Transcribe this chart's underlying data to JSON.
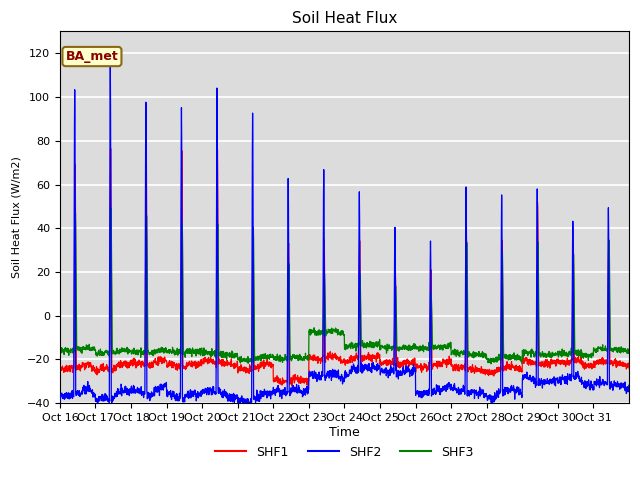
{
  "title": "Soil Heat Flux",
  "ylabel": "Soil Heat Flux (W/m2)",
  "xlabel": "Time",
  "ylim": [
    -40,
    130
  ],
  "yticks": [
    -40,
    -20,
    0,
    20,
    40,
    60,
    80,
    100,
    120
  ],
  "colors": {
    "SHF1": "red",
    "SHF2": "blue",
    "SHF3": "green"
  },
  "annotation": "BA_met",
  "n_days": 16,
  "pts_per_day": 144,
  "background_color": "#dcdcdc",
  "xtick_labels": [
    "Oct 16",
    "Oct 17",
    "Oct 18",
    "Oct 19",
    "Oct 20",
    "Oct 21",
    "Oct 22",
    "Oct 23",
    "Oct 24",
    "Oct 25",
    "Oct 26",
    "Oct 27",
    "Oct 28",
    "Oct 29",
    "Oct 30",
    "Oct 31"
  ],
  "peaks_shf2": [
    106,
    118,
    101,
    97,
    104,
    96,
    65,
    68,
    57,
    42,
    35,
    59,
    55,
    60,
    43,
    51
  ],
  "peaks_shf1": [
    74,
    83,
    79,
    80,
    81,
    42,
    36,
    38,
    37,
    23,
    24,
    38,
    37,
    55,
    35,
    35
  ],
  "peaks_shf3": [
    48,
    51,
    48,
    44,
    43,
    42,
    25,
    20,
    20,
    15,
    12,
    35,
    30,
    35,
    28,
    35
  ],
  "trough_shf2": [
    -36,
    -37,
    -35,
    -37,
    -36,
    -38,
    -35,
    -28,
    -25,
    -26,
    -35,
    -35,
    -36,
    -30,
    -30,
    -32
  ],
  "trough_shf1": [
    -24,
    -24,
    -22,
    -23,
    -22,
    -24,
    -30,
    -20,
    -20,
    -22,
    -23,
    -25,
    -25,
    -22,
    -22,
    -22
  ],
  "trough_shf3": [
    -16,
    -17,
    -17,
    -17,
    -18,
    -20,
    -20,
    -8,
    -14,
    -15,
    -15,
    -18,
    -20,
    -18,
    -18,
    -16
  ]
}
